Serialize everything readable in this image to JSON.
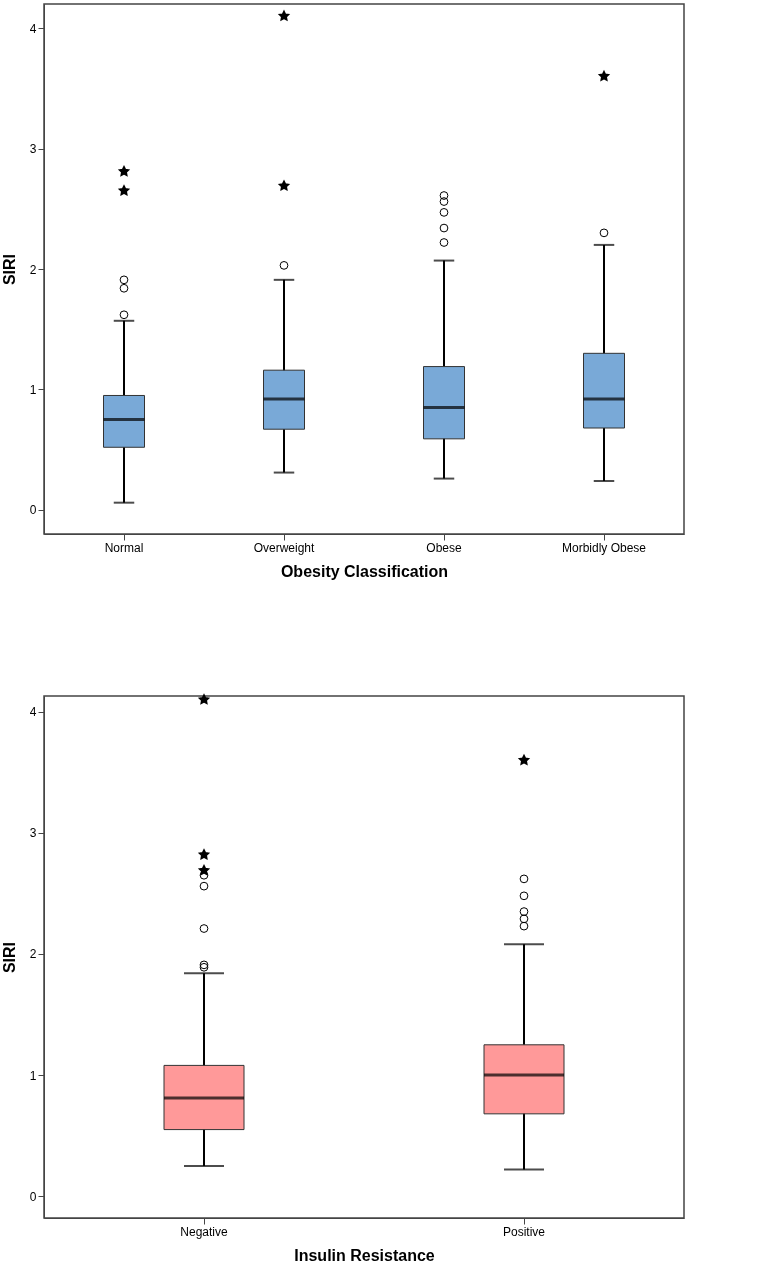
{
  "chart_data": [
    {
      "type": "box",
      "xlabel": "Obesity Classification",
      "ylabel": "SIRI",
      "color": "#79a9d7",
      "grid": false,
      "ylim": [
        -0.2,
        4.2
      ],
      "yticks": [
        0,
        1,
        2,
        3,
        4
      ],
      "categories": [
        "Normal",
        "Overweight",
        "Obese",
        "Morbidly Obese"
      ],
      "boxes": [
        {
          "low": 0.06,
          "q1": 0.52,
          "median": 0.75,
          "q3": 0.95,
          "high": 1.57,
          "outliers": [
            1.62,
            1.84,
            1.91,
            2.65,
            2.81
          ]
        },
        {
          "low": 0.31,
          "q1": 0.67,
          "median": 0.92,
          "q3": 1.16,
          "high": 1.91,
          "outliers": [
            2.03,
            2.69,
            4.1
          ]
        },
        {
          "low": 0.26,
          "q1": 0.59,
          "median": 0.85,
          "q3": 1.19,
          "high": 2.07,
          "outliers": [
            2.22,
            2.34,
            2.47,
            2.56,
            2.61
          ]
        },
        {
          "low": 0.24,
          "q1": 0.68,
          "median": 0.92,
          "q3": 1.3,
          "high": 2.2,
          "outliers": [
            2.3,
            3.6
          ]
        }
      ]
    },
    {
      "type": "box",
      "xlabel": "Insulin Resistance",
      "ylabel": "SIRI",
      "color": "#ff9999",
      "grid": false,
      "ylim": [
        -0.18,
        4.13
      ],
      "yticks": [
        0,
        1,
        2,
        3,
        4
      ],
      "categories": [
        "Negative",
        "Positive"
      ],
      "boxes": [
        {
          "low": 0.25,
          "q1": 0.55,
          "median": 0.81,
          "q3": 1.08,
          "high": 1.84,
          "outliers": [
            1.89,
            1.91,
            2.21,
            2.56,
            2.65,
            2.69,
            2.82,
            4.1
          ]
        },
        {
          "low": 0.22,
          "q1": 0.68,
          "median": 1.0,
          "q3": 1.25,
          "high": 2.08,
          "outliers": [
            2.23,
            2.29,
            2.35,
            2.48,
            2.62,
            3.6
          ]
        }
      ]
    }
  ]
}
